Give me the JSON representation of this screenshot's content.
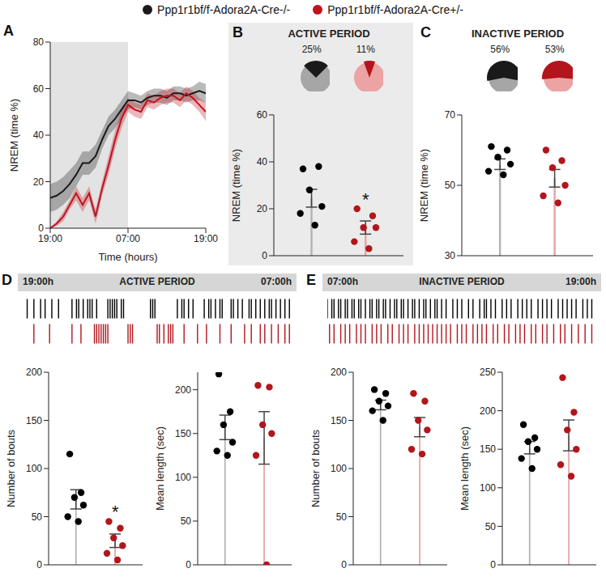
{
  "chart_data": [
    {
      "panel": "A",
      "type": "line",
      "x_label": "Time (hours)",
      "y_label": "NREM (time %)",
      "legend": "top",
      "x": [
        0,
        1,
        2,
        3,
        4,
        5,
        6,
        7,
        8,
        9,
        10,
        11,
        12,
        13,
        14,
        15,
        16,
        17,
        18,
        19,
        20,
        21,
        22,
        23,
        24
      ],
      "xlim": [
        0,
        24
      ],
      "xticks": [
        {
          "value": 0,
          "label": "19:00"
        },
        {
          "value": 12,
          "label": "07:00"
        },
        {
          "value": 24,
          "label": "19:00"
        }
      ],
      "ylim": [
        0,
        80
      ],
      "yticks": [
        0,
        20,
        40,
        60,
        80
      ],
      "shaded_x": [
        0,
        12
      ],
      "series": [
        {
          "name": "Ppp1r1bf/f-Adora2A-Cre-/-",
          "color": "#1a1a1a",
          "values": [
            13,
            14,
            16,
            19,
            23,
            28,
            28,
            31,
            38,
            44,
            47,
            51,
            55,
            55,
            54,
            56,
            57,
            57,
            56,
            58,
            58,
            57,
            58,
            59,
            58
          ],
          "error": [
            6,
            6,
            6,
            6,
            5,
            5,
            5,
            5,
            4,
            4,
            4,
            4,
            4,
            3,
            3,
            3,
            3,
            3,
            3,
            3,
            3,
            3,
            3,
            4,
            4
          ]
        },
        {
          "name": "Ppp1r1bf/f-Adora2A-Cre+/-",
          "color": "#c1121f",
          "values": [
            0,
            2,
            5,
            10,
            15,
            10,
            15,
            5,
            17,
            27,
            38,
            47,
            53,
            51,
            50,
            55,
            54,
            56,
            57,
            57,
            55,
            58,
            56,
            53,
            50
          ],
          "error": [
            0,
            1,
            2,
            2,
            3,
            3,
            3,
            3,
            3,
            4,
            4,
            4,
            3,
            3,
            3,
            3,
            3,
            3,
            3,
            3,
            3,
            3,
            3,
            3,
            4
          ]
        }
      ]
    },
    {
      "panel": "B",
      "type": "bar",
      "title": "ACTIVE PERIOD",
      "y_label": "NREM (time %)",
      "tick_labels": "y",
      "values": [
        24.5,
        12
      ],
      "error": [
        3.8,
        2.8
      ],
      "colors": [
        "#b3b3b3",
        "#e8a3a3"
      ],
      "points": [
        [
          37,
          38,
          28,
          21,
          18,
          13
        ],
        [
          20,
          17,
          12,
          12,
          6,
          3
        ]
      ],
      "point_colors": [
        "#000000",
        "#b2151b"
      ],
      "ylim": [
        0,
        60
      ],
      "yticks": [
        0,
        20,
        40,
        60
      ],
      "annotations": [
        {
          "text": "*",
          "x": 1
        }
      ],
      "pie_values": [
        25,
        11
      ],
      "pie_labels": [
        "25%",
        "11%"
      ],
      "pie_colors": [
        [
          "#1a1a1a",
          "#a6a6a6"
        ],
        [
          "#b2151b",
          "#eba3a3"
        ]
      ]
    },
    {
      "panel": "C",
      "type": "bar",
      "title": "INACTIVE PERIOD",
      "y_label": "NREM (time %)",
      "tick_labels": "y",
      "values": [
        56,
        52
      ],
      "error": [
        1.5,
        2.5
      ],
      "colors": [
        "#b3b3b3",
        "#e8a3a3"
      ],
      "points": [
        [
          61,
          60,
          58,
          56,
          54,
          53
        ],
        [
          60,
          57,
          55,
          50,
          47,
          45
        ]
      ],
      "point_colors": [
        "#000000",
        "#b2151b"
      ],
      "ylim": [
        30,
        70
      ],
      "yticks": [
        30,
        50,
        70
      ],
      "pie_values": [
        56,
        53
      ],
      "pie_labels": [
        "56%",
        "53%"
      ],
      "pie_colors": [
        [
          "#1a1a1a",
          "#a6a6a6"
        ],
        [
          "#b2151b",
          "#eba3a3"
        ]
      ]
    },
    {
      "panel": "D",
      "type": "raster",
      "title": "ACTIVE PERIOD",
      "xlim": [
        0,
        12
      ],
      "xticks": [
        {
          "value": 0,
          "label": "19:00h"
        },
        {
          "value": 12,
          "label": "07:00h"
        }
      ],
      "series": [
        {
          "color": "#000000",
          "values": [
            0.2,
            0.5,
            0.8,
            1.0,
            1.3,
            1.6,
            2.2,
            2.4,
            2.5,
            2.7,
            2.9,
            3.0,
            3.1,
            3.3,
            3.8,
            3.9,
            4.0,
            4.1,
            4.2,
            4.4,
            4.5,
            5.7,
            5.8,
            5.9,
            6.9,
            7.1,
            7.2,
            7.4,
            7.6,
            8.1,
            8.3,
            8.4,
            8.6,
            8.8,
            8.9,
            9.3,
            9.4,
            9.6,
            9.8,
            10.1,
            10.2,
            10.4,
            10.6,
            10.8,
            11.0,
            11.1,
            11.3,
            11.5,
            11.7,
            11.9
          ]
        },
        {
          "color": "#b2151b",
          "values": [
            0.5,
            1.2,
            2.2,
            2.6,
            3.2,
            3.3,
            3.4,
            3.5,
            3.6,
            3.7,
            3.8,
            4.7,
            4.8,
            4.9,
            6.0,
            6.1,
            6.3,
            6.5,
            6.6,
            6.7,
            7.2,
            7.8,
            8.2,
            8.8,
            9.3,
            9.9,
            10.2,
            10.6,
            10.8,
            11.1,
            11.4,
            11.7,
            11.9
          ]
        }
      ]
    },
    {
      "type": "bar",
      "y_label": "Number of bouts",
      "tick_labels": "y",
      "values": [
        68,
        25
      ],
      "error": [
        10,
        7
      ],
      "colors": [
        "#b3b3b3",
        "#e8a3a3"
      ],
      "points": [
        [
          115,
          75,
          70,
          62,
          50,
          45
        ],
        [
          45,
          38,
          28,
          20,
          12,
          5
        ]
      ],
      "point_colors": [
        "#000000",
        "#b2151b"
      ],
      "ylim": [
        0,
        200
      ],
      "yticks": [
        0,
        50,
        100,
        150,
        200
      ],
      "annotations": [
        {
          "text": "*",
          "x": 1
        }
      ]
    },
    {
      "type": "bar",
      "y_label": "Mean length (sec)",
      "tick_labels": "y",
      "values": [
        157,
        145
      ],
      "error": [
        14,
        30
      ],
      "colors": [
        "#b3b3b3",
        "#e8a3a3"
      ],
      "points": [
        [
          218,
          175,
          160,
          140,
          130,
          125
        ],
        [
          205,
          203,
          160,
          150,
          125,
          0
        ]
      ],
      "point_colors": [
        "#000000",
        "#b2151b"
      ],
      "ylim": [
        0,
        220
      ],
      "yticks": [
        0,
        50,
        100,
        150,
        200
      ]
    },
    {
      "panel": "E",
      "type": "raster",
      "title": "INACTIVE PERIOD",
      "xlim": [
        0,
        12
      ],
      "xticks": [
        {
          "value": 0,
          "label": "07:00h"
        },
        {
          "value": 12,
          "label": "19:00h"
        }
      ],
      "series": [
        {
          "color": "#000000",
          "values": [
            0.0,
            0.2,
            0.3,
            0.5,
            0.6,
            0.8,
            0.9,
            1.1,
            1.2,
            1.4,
            1.5,
            1.7,
            1.9,
            2.0,
            2.2,
            2.3,
            2.5,
            2.6,
            2.8,
            3.0,
            3.1,
            3.3,
            3.4,
            3.6,
            3.8,
            3.9,
            4.1,
            4.3,
            4.4,
            4.6,
            4.8,
            4.9,
            5.1,
            5.3,
            5.6,
            5.8,
            6.0,
            6.3,
            6.5,
            6.8,
            7.0,
            7.1,
            7.3,
            7.5,
            7.8,
            8.0,
            8.2,
            8.5,
            8.7,
            8.9,
            9.1,
            9.4,
            9.6,
            9.8,
            10.0,
            10.3,
            10.5,
            10.7,
            10.9,
            11.1,
            11.4,
            11.6,
            11.8
          ]
        },
        {
          "color": "#b2151b",
          "values": [
            0.1,
            0.3,
            0.6,
            0.8,
            1.0,
            1.3,
            1.5,
            1.7,
            2.0,
            2.2,
            2.4,
            2.7,
            2.9,
            3.2,
            3.4,
            3.6,
            3.9,
            4.1,
            4.3,
            4.5,
            4.7,
            4.9,
            5.1,
            5.3,
            5.5,
            5.8,
            6.0,
            6.2,
            6.5,
            6.7,
            6.9,
            7.1,
            7.4,
            7.6,
            7.9,
            8.1,
            8.4,
            8.6,
            8.8,
            9.1,
            9.3,
            9.6,
            9.8,
            10.1,
            10.4,
            10.6,
            10.9,
            11.2,
            11.5,
            11.8
          ]
        }
      ]
    },
    {
      "type": "bar",
      "y_label": "Number of bouts",
      "tick_labels": "y",
      "values": [
        166,
        143
      ],
      "error": [
        5,
        10
      ],
      "colors": [
        "#b3b3b3",
        "#e8a3a3"
      ],
      "points": [
        [
          182,
          178,
          170,
          165,
          160,
          150
        ],
        [
          178,
          170,
          150,
          140,
          120,
          115
        ]
      ],
      "point_colors": [
        "#000000",
        "#b2151b"
      ],
      "ylim": [
        0,
        200
      ],
      "yticks": [
        0,
        50,
        100,
        150,
        200
      ]
    },
    {
      "type": "bar",
      "y_label": "Mean length (sec)",
      "tick_labels": "y",
      "values": [
        152,
        168
      ],
      "error": [
        8,
        20
      ],
      "colors": [
        "#b3b3b3",
        "#e8a3a3"
      ],
      "points": [
        [
          182,
          165,
          160,
          150,
          138,
          125
        ],
        [
          243,
          198,
          175,
          150,
          130,
          115
        ]
      ],
      "point_colors": [
        "#000000",
        "#b2151b"
      ],
      "ylim": [
        0,
        250
      ],
      "yticks": [
        0,
        50,
        100,
        150,
        200,
        250
      ]
    }
  ]
}
